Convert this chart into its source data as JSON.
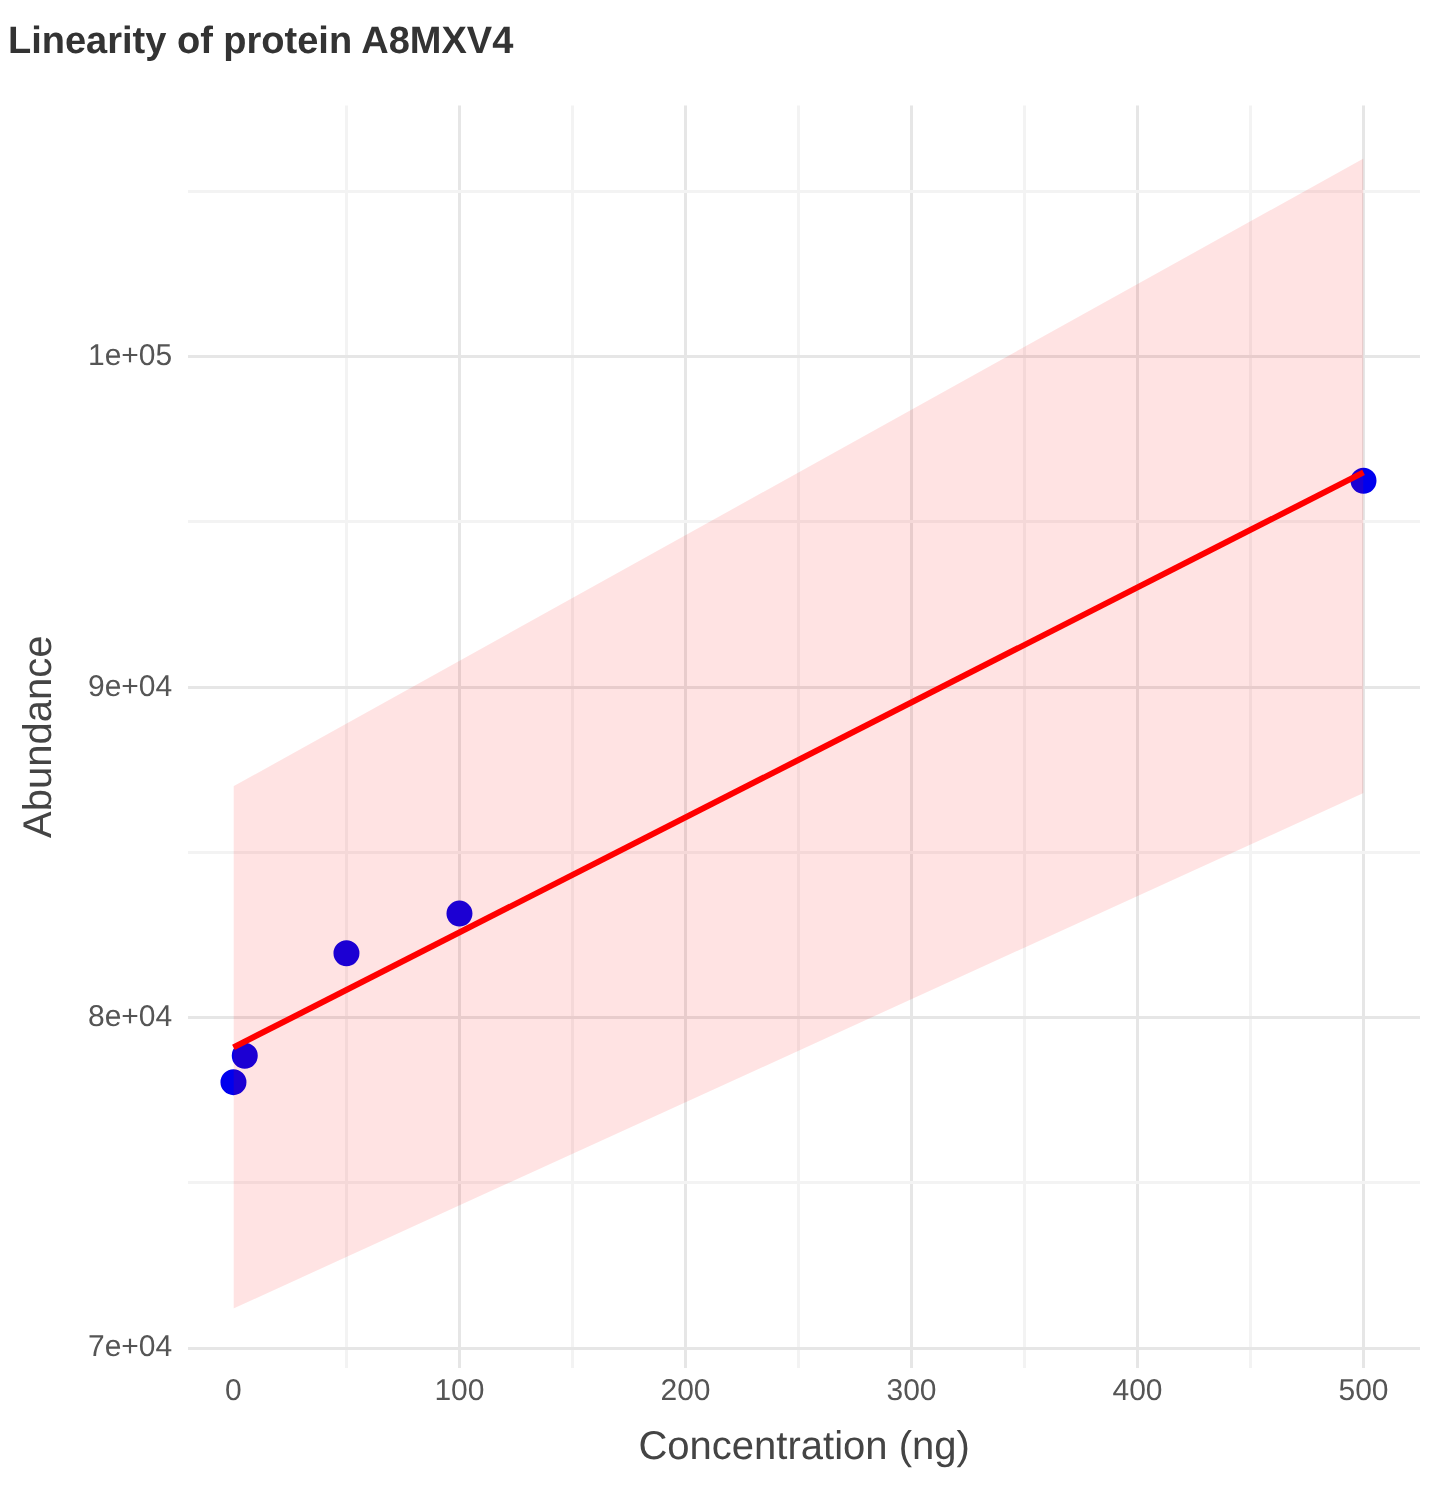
{
  "chart_data": {
    "type": "scatter",
    "title": "Linearity of protein A8MXV4",
    "xlabel": "Concentration (ng)",
    "ylabel": "Abundance",
    "xlim": [
      -20,
      525
    ],
    "xticks": [
      0,
      {
        "value": 50,
        "label": null
      },
      100,
      {
        "value": 150,
        "label": null
      },
      200,
      {
        "value": 250,
        "label": null
      },
      300,
      {
        "value": 350,
        "label": null
      },
      400,
      {
        "value": 450,
        "label": null
      },
      500
    ],
    "ylim": [
      69400,
      107600
    ],
    "yticks": [
      {
        "value": 70000,
        "label": "7e+04"
      },
      {
        "value": 75000,
        "label": null
      },
      {
        "value": 80000,
        "label": "8e+04"
      },
      {
        "value": 85000,
        "label": null
      },
      {
        "value": 90000,
        "label": "9e+04"
      },
      {
        "value": 95000,
        "label": null
      },
      {
        "value": 100000,
        "label": "1e+05"
      },
      {
        "value": 105000,
        "label": null
      }
    ],
    "grid": true,
    "legend": false,
    "marker": "circle",
    "series": [
      {
        "type": "line",
        "color": "#ff0000",
        "x": [
          0,
          500
        ],
        "values": [
          79100,
          96500
        ],
        "lower": [
          71200,
          86800
        ],
        "upper": [
          87000,
          106000
        ],
        "marker": "none"
      },
      {
        "type": "scatter",
        "color": "#0000ee",
        "x": [
          0,
          5,
          50,
          100,
          500
        ],
        "values": [
          78050,
          78850,
          81950,
          83150,
          96250
        ]
      }
    ]
  }
}
